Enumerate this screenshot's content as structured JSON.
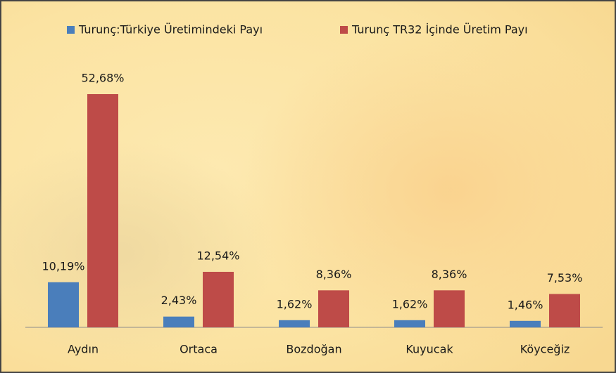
{
  "chart_data": {
    "type": "bar",
    "categories": [
      "Aydın",
      "Ortaca",
      "Bozdoğan",
      "Kuyucak",
      "Köyceğiz"
    ],
    "series": [
      {
        "name": "Turunç:Türkiye Üretimindeki Payı",
        "color": "#4a7ebb",
        "values": [
          10.19,
          2.43,
          1.62,
          1.62,
          1.46
        ],
        "value_labels": [
          "10,19%",
          "2,43%",
          "1,62%",
          "1,62%",
          "1,46%"
        ]
      },
      {
        "name": "Turunç TR32 İçinde Üretim Payı",
        "color": "#be4b48",
        "values": [
          52.68,
          12.54,
          8.36,
          8.36,
          7.53
        ],
        "value_labels": [
          "52,68%",
          "12,54%",
          "8,36%",
          "8,36%",
          "7,53%"
        ]
      }
    ],
    "legend": "top"
  }
}
